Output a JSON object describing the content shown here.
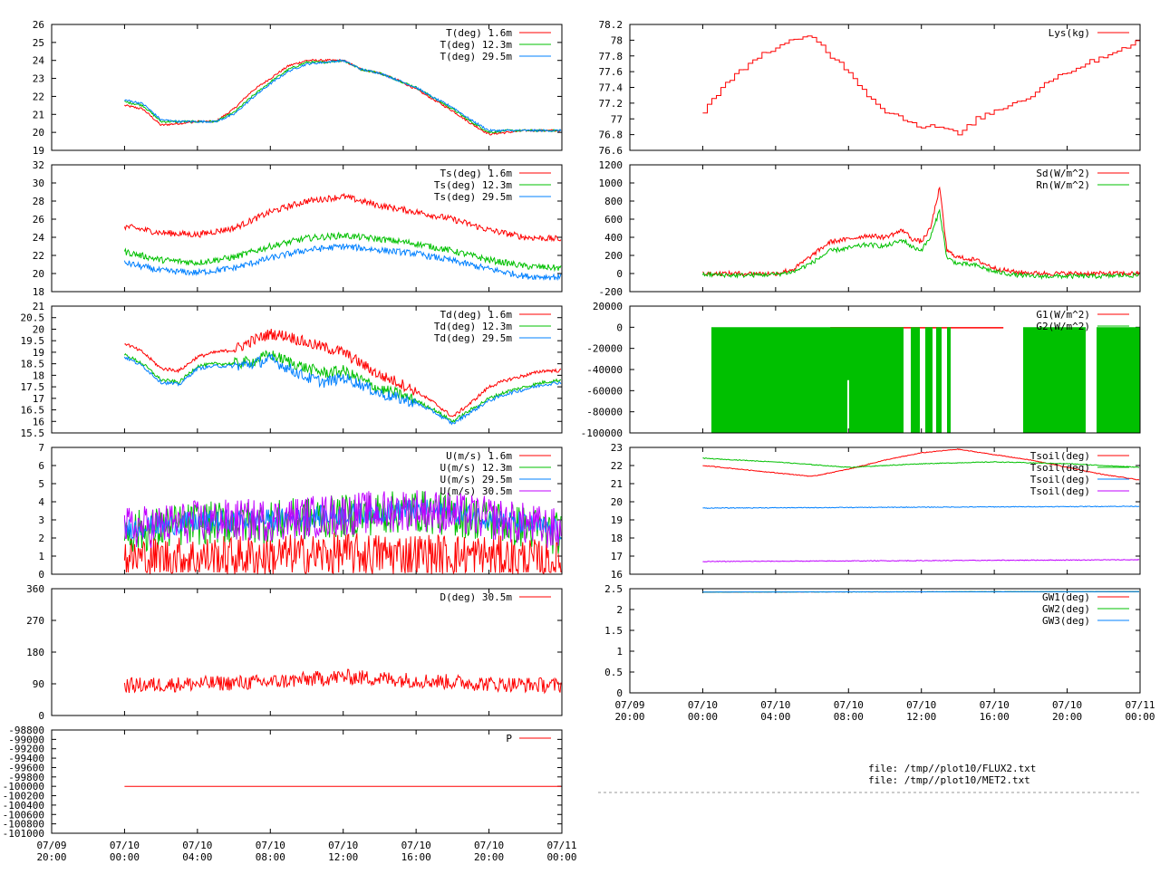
{
  "page": {
    "background": "#ffffff"
  },
  "colors": {
    "red": "#ff0000",
    "green": "#00c000",
    "blue": "#0080ff",
    "purple": "#c000ff",
    "frame": "#000000"
  },
  "footer": {
    "files": [
      "file: /tmp//plot10/FLUX2.txt",
      "file: /tmp//plot10/MET2.txt"
    ]
  },
  "chart_data": [
    {
      "id": "T",
      "type": "line",
      "ylim": [
        19,
        26
      ],
      "yticks": [
        "19",
        "20",
        "21",
        "22",
        "23",
        "24",
        "25",
        "26"
      ],
      "xlim_hours": [
        -4,
        24
      ],
      "series": [
        {
          "name": "T(deg)  1.6m",
          "color": "#ff0000",
          "x": [
            0,
            1,
            2,
            3,
            4,
            5,
            6,
            7,
            8,
            9,
            10,
            11,
            12,
            13,
            14,
            15,
            16,
            17,
            18,
            19,
            20,
            21,
            22,
            23,
            24
          ],
          "y": [
            21.5,
            21.3,
            20.4,
            20.5,
            20.6,
            20.6,
            21.3,
            22.3,
            23.0,
            23.7,
            24.0,
            24.0,
            24.0,
            23.5,
            23.3,
            22.9,
            22.4,
            21.8,
            21.2,
            20.5,
            19.9,
            20.0,
            20.1,
            20.1,
            20.1
          ]
        },
        {
          "name": "T(deg) 12.3m",
          "color": "#00c000",
          "x": [
            0,
            1,
            2,
            3,
            4,
            5,
            6,
            7,
            8,
            9,
            10,
            11,
            12,
            13,
            14,
            15,
            16,
            17,
            18,
            19,
            20,
            21,
            22,
            23,
            24
          ],
          "y": [
            21.7,
            21.5,
            20.6,
            20.6,
            20.6,
            20.6,
            21.1,
            22.0,
            22.8,
            23.5,
            23.9,
            23.9,
            24.0,
            23.5,
            23.3,
            22.9,
            22.5,
            21.9,
            21.3,
            20.6,
            20.0,
            20.1,
            20.1,
            20.1,
            20.1
          ]
        },
        {
          "name": "T(deg) 29.5m",
          "color": "#0080ff",
          "x": [
            0,
            1,
            2,
            3,
            4,
            5,
            6,
            7,
            8,
            9,
            10,
            11,
            12,
            13,
            14,
            15,
            16,
            17,
            18,
            19,
            20,
            21,
            22,
            23,
            24
          ],
          "y": [
            21.8,
            21.6,
            20.7,
            20.6,
            20.6,
            20.6,
            21.0,
            21.9,
            22.7,
            23.4,
            23.8,
            23.9,
            24.0,
            23.5,
            23.3,
            22.9,
            22.5,
            21.9,
            21.4,
            20.7,
            20.1,
            20.1,
            20.1,
            20.1,
            20.1
          ]
        }
      ]
    },
    {
      "id": "Ts",
      "type": "line",
      "ylim": [
        18,
        32
      ],
      "yticks": [
        "18",
        "20",
        "22",
        "24",
        "26",
        "28",
        "30",
        "32"
      ],
      "xlim_hours": [
        -4,
        24
      ],
      "series": [
        {
          "name": "Ts(deg)  1.6m",
          "color": "#ff0000",
          "x": [
            0,
            2,
            4,
            6,
            8,
            10,
            12,
            14,
            16,
            18,
            20,
            22,
            24
          ],
          "y": [
            25.2,
            24.5,
            24.3,
            25.0,
            26.8,
            28.0,
            28.5,
            27.5,
            26.8,
            26.0,
            24.8,
            24.0,
            23.8
          ]
        },
        {
          "name": "Ts(deg) 12.3m",
          "color": "#00c000",
          "x": [
            0,
            2,
            4,
            6,
            8,
            10,
            12,
            14,
            16,
            18,
            20,
            22,
            24
          ],
          "y": [
            22.4,
            21.5,
            21.2,
            21.8,
            23.0,
            23.9,
            24.2,
            23.8,
            23.3,
            22.5,
            21.5,
            20.8,
            20.6
          ]
        },
        {
          "name": "Ts(deg) 29.5m",
          "color": "#0080ff",
          "x": [
            0,
            2,
            4,
            6,
            8,
            10,
            12,
            14,
            16,
            18,
            20,
            22,
            24
          ],
          "y": [
            21.2,
            20.3,
            20.1,
            20.6,
            21.7,
            22.6,
            23.0,
            22.6,
            22.2,
            21.4,
            20.5,
            19.7,
            19.6
          ]
        }
      ]
    },
    {
      "id": "Td",
      "type": "line",
      "ylim": [
        15.5,
        21
      ],
      "yticks": [
        "15.5",
        "16",
        "16.5",
        "17",
        "17.5",
        "18",
        "18.5",
        "19",
        "19.5",
        "20",
        "20.5",
        "21"
      ],
      "xlim_hours": [
        -4,
        24
      ],
      "series": [
        {
          "name": "Td(deg)  1.6m",
          "color": "#ff0000",
          "x": [
            0,
            1,
            2,
            3,
            4,
            5,
            6,
            7,
            8,
            9,
            10,
            11,
            12,
            13,
            14,
            15,
            16,
            17,
            18,
            19,
            20,
            21,
            22,
            23,
            24
          ],
          "y": [
            19.4,
            19.0,
            18.3,
            18.2,
            18.8,
            19.0,
            19.1,
            19.5,
            19.8,
            19.7,
            19.4,
            19.2,
            19.0,
            18.5,
            18.0,
            17.7,
            17.3,
            16.8,
            16.2,
            16.8,
            17.5,
            17.8,
            18.0,
            18.2,
            18.2
          ]
        },
        {
          "name": "Td(deg) 12.3m",
          "color": "#00c000",
          "x": [
            0,
            1,
            2,
            3,
            4,
            5,
            6,
            7,
            8,
            9,
            10,
            11,
            12,
            13,
            14,
            15,
            16,
            17,
            18,
            19,
            20,
            21,
            22,
            23,
            24
          ],
          "y": [
            18.9,
            18.5,
            17.8,
            17.7,
            18.4,
            18.5,
            18.5,
            18.6,
            18.9,
            18.6,
            18.3,
            18.1,
            18.2,
            17.8,
            17.4,
            17.2,
            16.9,
            16.5,
            16.0,
            16.5,
            17.0,
            17.3,
            17.5,
            17.7,
            17.8
          ]
        },
        {
          "name": "Td(deg) 29.5m",
          "color": "#0080ff",
          "x": [
            0,
            1,
            2,
            3,
            4,
            5,
            6,
            7,
            8,
            9,
            10,
            11,
            12,
            13,
            14,
            15,
            16,
            17,
            18,
            19,
            20,
            21,
            22,
            23,
            24
          ],
          "y": [
            18.8,
            18.4,
            17.7,
            17.6,
            18.3,
            18.4,
            18.4,
            18.5,
            18.7,
            18.3,
            17.9,
            17.7,
            17.9,
            17.6,
            17.2,
            17.0,
            16.8,
            16.4,
            15.9,
            16.4,
            16.9,
            17.2,
            17.4,
            17.6,
            17.7
          ]
        }
      ]
    },
    {
      "id": "U",
      "type": "line",
      "ylim": [
        0,
        7
      ],
      "yticks": [
        "0",
        "1",
        "2",
        "3",
        "4",
        "5",
        "6",
        "7"
      ],
      "xlim_hours": [
        -4,
        24
      ],
      "series": [
        {
          "name": "U(m/s)  1.6m",
          "color": "#ff0000",
          "x": [
            0,
            4,
            8,
            12,
            16,
            20,
            24
          ],
          "y": [
            0.9,
            0.9,
            1.0,
            1.1,
            1.1,
            1.0,
            0.6
          ]
        },
        {
          "name": "U(m/s) 12.3m",
          "color": "#00c000",
          "x": [
            0,
            4,
            8,
            12,
            16,
            20,
            24
          ],
          "y": [
            2.3,
            2.8,
            2.9,
            3.2,
            3.5,
            3.0,
            2.2
          ]
        },
        {
          "name": "U(m/s) 29.5m",
          "color": "#0080ff",
          "x": [
            0,
            4,
            8,
            12,
            16,
            20,
            24
          ],
          "y": [
            2.5,
            2.9,
            3.0,
            3.3,
            3.6,
            3.1,
            2.4
          ]
        },
        {
          "name": "U(m/s) 30.5m",
          "color": "#c000ff",
          "x": [
            0,
            4,
            8,
            12,
            16,
            20,
            24
          ],
          "y": [
            2.5,
            2.9,
            3.0,
            3.3,
            3.6,
            3.1,
            2.4
          ]
        }
      ]
    },
    {
      "id": "D",
      "type": "line",
      "ylim": [
        0,
        360
      ],
      "yticks": [
        "0",
        "90",
        "180",
        "270",
        "360"
      ],
      "xlim_hours": [
        -4,
        24
      ],
      "series": [
        {
          "name": "D(deg)  30.5m",
          "color": "#ff0000",
          "x": [
            0,
            4,
            8,
            12,
            16,
            20,
            24
          ],
          "y": [
            85,
            90,
            95,
            110,
            100,
            90,
            85
          ]
        }
      ]
    },
    {
      "id": "P",
      "type": "line",
      "ylim": [
        -101000,
        -98800
      ],
      "yticks": [
        "-101000",
        "-100800",
        "-100600",
        "-100400",
        "-100200",
        "-100000",
        "-99800",
        "-99600",
        "-99400",
        "-99200",
        "-99000",
        "-98800"
      ],
      "xlim_hours": [
        -4,
        24
      ],
      "xticks_top": [
        "07/09",
        "07/10",
        "07/10",
        "07/10",
        "07/10",
        "07/10",
        "07/10",
        "07/11"
      ],
      "xticks_bottom": [
        "20:00",
        "00:00",
        "04:00",
        "08:00",
        "12:00",
        "16:00",
        "20:00",
        "00:00"
      ],
      "series": [
        {
          "name": "P",
          "color": "#ff0000",
          "x": [
            0,
            24
          ],
          "y": [
            -100000,
            -100000
          ]
        }
      ]
    },
    {
      "id": "Lys",
      "type": "line",
      "ylim": [
        76.6,
        78.2
      ],
      "yticks": [
        "76.6",
        "76.8",
        "77",
        "77.2",
        "77.4",
        "77.6",
        "77.8",
        "78",
        "78.2"
      ],
      "xlim_hours": [
        -4,
        24
      ],
      "series": [
        {
          "name": "Lys(kg)",
          "color": "#ff0000",
          "x": [
            0,
            1,
            2,
            3,
            4,
            5,
            6,
            7,
            8,
            9,
            10,
            11,
            12,
            13,
            14,
            15,
            16,
            17,
            18,
            19,
            20,
            21,
            22,
            23,
            24
          ],
          "y": [
            77.1,
            77.4,
            77.6,
            77.8,
            77.9,
            78.0,
            78.05,
            77.8,
            77.6,
            77.3,
            77.1,
            77.0,
            76.9,
            76.9,
            76.8,
            77.0,
            77.1,
            77.2,
            77.3,
            77.5,
            77.6,
            77.7,
            77.8,
            77.9,
            78.0
          ]
        }
      ]
    },
    {
      "id": "Sd",
      "type": "line",
      "ylim": [
        -200,
        1200
      ],
      "yticks": [
        "-200",
        "0",
        "200",
        "400",
        "600",
        "800",
        "1000",
        "1200"
      ],
      "xlim_hours": [
        -4,
        24
      ],
      "series": [
        {
          "name": "Sd(W/m^2)",
          "color": "#ff0000",
          "x": [
            0,
            2,
            4,
            5,
            6,
            7,
            8,
            9,
            10,
            11,
            11.5,
            12,
            12.5,
            13,
            13.4,
            14,
            15,
            16,
            17,
            18,
            19,
            20,
            21,
            22,
            23,
            24
          ],
          "y": [
            0,
            0,
            0,
            50,
            200,
            350,
            380,
            420,
            400,
            480,
            380,
            350,
            500,
            950,
            250,
            180,
            150,
            60,
            20,
            5,
            0,
            0,
            0,
            0,
            0,
            0
          ]
        },
        {
          "name": "Rn(W/m^2)",
          "color": "#00c000",
          "x": [
            0,
            2,
            4,
            5,
            6,
            7,
            8,
            9,
            10,
            11,
            11.5,
            12,
            12.5,
            13,
            13.4,
            14,
            15,
            16,
            17,
            18,
            19,
            20,
            21,
            22,
            23,
            24
          ],
          "y": [
            -10,
            -20,
            -10,
            20,
            120,
            250,
            280,
            320,
            300,
            370,
            290,
            260,
            400,
            700,
            170,
            110,
            90,
            20,
            -10,
            -30,
            -30,
            -30,
            -30,
            -30,
            -20,
            -20
          ]
        }
      ]
    },
    {
      "id": "G",
      "type": "area",
      "ylim": [
        -100000,
        20000
      ],
      "yticks": [
        "-100000",
        "-80000",
        "-60000",
        "-40000",
        "-20000",
        "0",
        "20000"
      ],
      "xlim_hours": [
        -4,
        24
      ],
      "series": [
        {
          "name": "G1(W/m^2)",
          "color": "#ff0000",
          "x": [
            7,
            16.5
          ],
          "y": [
            -500,
            -500
          ]
        },
        {
          "name": "G2(W/m^2)",
          "color": "#00c000",
          "x": [
            0.5,
            24
          ],
          "y": [
            0,
            -99999
          ]
        }
      ]
    },
    {
      "id": "Tsoil",
      "type": "line",
      "ylim": [
        16,
        23
      ],
      "yticks": [
        "16",
        "17",
        "18",
        "19",
        "20",
        "21",
        "22",
        "23"
      ],
      "xlim_hours": [
        -4,
        24
      ],
      "series": [
        {
          "name": "Tsoil(deg)",
          "color": "#ff0000",
          "x": [
            0,
            2,
            4,
            6,
            8,
            10,
            12,
            14,
            16,
            18,
            20,
            22,
            24
          ],
          "y": [
            22.0,
            21.8,
            21.6,
            21.4,
            21.8,
            22.3,
            22.7,
            22.9,
            22.6,
            22.3,
            21.9,
            21.5,
            21.2
          ]
        },
        {
          "name": "Tsoil(deg)",
          "color": "#00c000",
          "x": [
            0,
            4,
            8,
            12,
            16,
            20,
            24
          ],
          "y": [
            22.4,
            22.2,
            21.9,
            22.1,
            22.2,
            22.1,
            21.9
          ]
        },
        {
          "name": "Tsoil(deg)",
          "color": "#0080ff",
          "x": [
            0,
            24
          ],
          "y": [
            19.65,
            19.75
          ]
        },
        {
          "name": "Tsoil(deg)",
          "color": "#c000ff",
          "x": [
            0,
            24
          ],
          "y": [
            16.7,
            16.8
          ]
        }
      ]
    },
    {
      "id": "GW",
      "type": "line",
      "ylim": [
        0,
        2.5
      ],
      "yticks": [
        "0",
        "0.5",
        "1",
        "1.5",
        "2",
        "2.5"
      ],
      "xlim_hours": [
        -4,
        24
      ],
      "xticks_top": [
        "07/09",
        "07/10",
        "07/10",
        "07/10",
        "07/10",
        "07/10",
        "07/10",
        "07/11"
      ],
      "xticks_bottom": [
        "20:00",
        "00:00",
        "04:00",
        "08:00",
        "12:00",
        "16:00",
        "20:00",
        "00:00"
      ],
      "series": [
        {
          "name": "GW1(deg)",
          "color": "#ff0000",
          "x": [
            0,
            24
          ],
          "y": [
            2.42,
            2.43
          ]
        },
        {
          "name": "GW2(deg)",
          "color": "#00c000",
          "x": [
            0,
            24
          ],
          "y": [
            2.42,
            2.43
          ]
        },
        {
          "name": "GW3(deg)",
          "color": "#0080ff",
          "x": [
            0,
            24
          ],
          "y": [
            2.42,
            2.43
          ]
        }
      ]
    }
  ]
}
